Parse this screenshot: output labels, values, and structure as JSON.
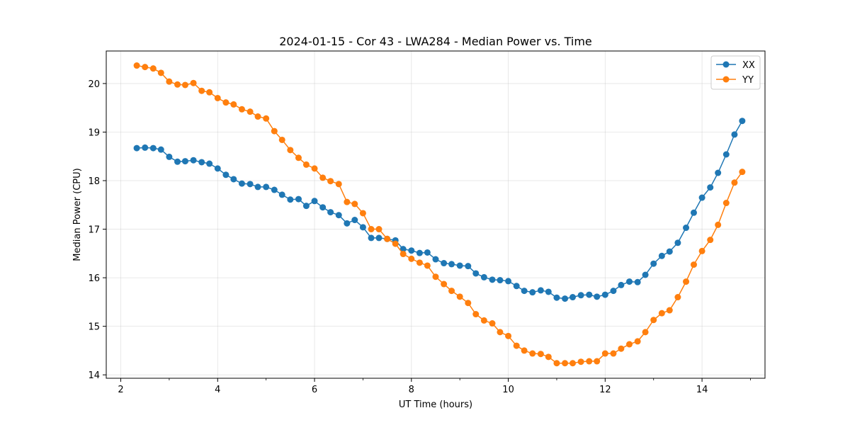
{
  "chart_data": {
    "type": "line",
    "title": "2024-01-15 - Cor 43 - LWA284 - Median Power vs. Time",
    "xlabel": "UT Time (hours)",
    "ylabel": "Median Power (CPU)",
    "xlim": [
      1.7,
      15.3
    ],
    "ylim": [
      13.93,
      20.67
    ],
    "xticks": [
      2,
      4,
      6,
      8,
      10,
      12,
      14
    ],
    "yticks": [
      14,
      15,
      16,
      17,
      18,
      19,
      20
    ],
    "xtick_labels": [
      "2",
      "4",
      "6",
      "8",
      "10",
      "12",
      "14"
    ],
    "ytick_labels": [
      "14",
      "15",
      "16",
      "17",
      "18",
      "19",
      "20"
    ],
    "grid": true,
    "legend_position": "top-right",
    "x": [
      2.33,
      2.5,
      2.67,
      2.83,
      3.0,
      3.17,
      3.33,
      3.5,
      3.67,
      3.83,
      4.0,
      4.17,
      4.33,
      4.5,
      4.67,
      4.83,
      5.0,
      5.17,
      5.33,
      5.5,
      5.67,
      5.83,
      6.0,
      6.17,
      6.33,
      6.5,
      6.67,
      6.83,
      7.0,
      7.17,
      7.33,
      7.5,
      7.67,
      7.83,
      8.0,
      8.17,
      8.33,
      8.5,
      8.67,
      8.83,
      9.0,
      9.17,
      9.33,
      9.5,
      9.67,
      9.83,
      10.0,
      10.17,
      10.33,
      10.5,
      10.67,
      10.83,
      11.0,
      11.17,
      11.33,
      11.5,
      11.67,
      11.83,
      12.0,
      12.17,
      12.33,
      12.5,
      12.67,
      12.83,
      13.0,
      13.17,
      13.33,
      13.5,
      13.67,
      13.83,
      14.0,
      14.17,
      14.33,
      14.5,
      14.67,
      14.83
    ],
    "series": [
      {
        "name": "XX",
        "color": "#1f77b4",
        "values": [
          18.67,
          18.68,
          18.67,
          18.64,
          18.49,
          18.39,
          18.4,
          18.42,
          18.38,
          18.35,
          18.25,
          18.12,
          18.03,
          17.94,
          17.93,
          17.87,
          17.87,
          17.81,
          17.71,
          17.61,
          17.62,
          17.48,
          17.58,
          17.45,
          17.35,
          17.29,
          17.12,
          17.19,
          17.04,
          16.82,
          16.82,
          16.8,
          16.77,
          16.59,
          16.56,
          16.51,
          16.52,
          16.38,
          16.3,
          16.28,
          16.25,
          16.24,
          16.09,
          16.01,
          15.96,
          15.95,
          15.93,
          15.83,
          15.73,
          15.7,
          15.74,
          15.71,
          15.59,
          15.57,
          15.6,
          15.64,
          15.65,
          15.61,
          15.65,
          15.73,
          15.85,
          15.92,
          15.91,
          16.06,
          16.29,
          16.45,
          16.54,
          16.72,
          17.03,
          17.34,
          17.65,
          17.86,
          18.16,
          18.54,
          18.95,
          19.23
        ]
      },
      {
        "name": "YY",
        "color": "#ff7f0e",
        "values": [
          20.37,
          20.34,
          20.31,
          20.22,
          20.04,
          19.98,
          19.97,
          20.01,
          19.85,
          19.82,
          19.7,
          19.61,
          19.57,
          19.47,
          19.42,
          19.32,
          19.28,
          19.02,
          18.84,
          18.63,
          18.47,
          18.33,
          18.25,
          18.06,
          17.99,
          17.93,
          17.56,
          17.52,
          17.33,
          17.0,
          17.0,
          16.8,
          16.7,
          16.49,
          16.39,
          16.31,
          16.25,
          16.02,
          15.87,
          15.73,
          15.61,
          15.48,
          15.25,
          15.12,
          15.06,
          14.88,
          14.8,
          14.6,
          14.5,
          14.44,
          14.43,
          14.37,
          14.24,
          14.24,
          14.24,
          14.27,
          14.28,
          14.28,
          14.44,
          14.44,
          14.54,
          14.63,
          14.69,
          14.88,
          15.13,
          15.27,
          15.33,
          15.6,
          15.92,
          16.27,
          16.55,
          16.78,
          17.09,
          17.54,
          17.96,
          18.18
        ]
      }
    ]
  }
}
